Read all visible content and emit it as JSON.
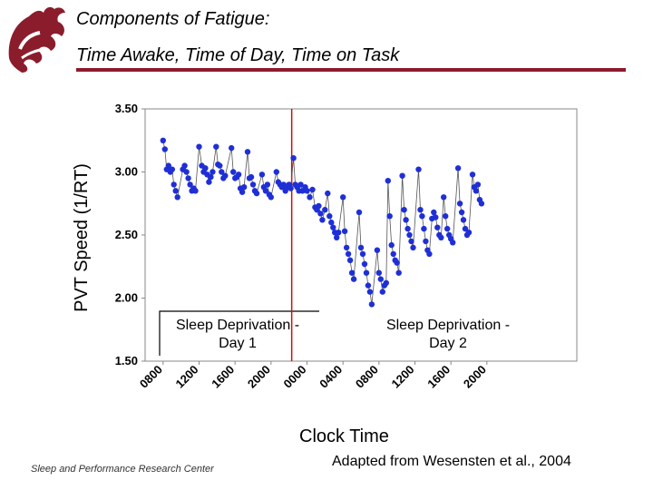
{
  "header": {
    "title_line1": "Components of Fatigue:",
    "title_line2": "Time Awake, Time of Day, Time on Task",
    "accent_color": "#8b1c2c",
    "logo_icon": "cougar-head-logo"
  },
  "chart_data": {
    "type": "scatter",
    "title": "",
    "xlabel": "Clock Time",
    "ylabel": "PVT Speed (1/RT)",
    "ylim": [
      1.5,
      3.5
    ],
    "yticks": [
      "1.50",
      "2.00",
      "2.50",
      "3.00",
      "3.50"
    ],
    "xlim_hours": [
      6,
      54
    ],
    "xticks": [
      "0800",
      "1200",
      "1600",
      "2000",
      "0000",
      "0400",
      "0800",
      "1200",
      "1600",
      "2000"
    ],
    "marker_color": "#1f2fd6",
    "connector_color": "#555555",
    "divider_color": "#cc1111",
    "divider_x_hours": 22.3,
    "annotations": [
      {
        "line1": "Sleep Deprivation -",
        "line2": "Day 1"
      },
      {
        "line1": "Sleep Deprivation -",
        "line2": "Day 2"
      }
    ],
    "series": [
      {
        "values": [
          [
            8.0,
            3.25
          ],
          [
            8.2,
            3.18
          ],
          [
            8.4,
            3.02
          ],
          [
            8.6,
            3.05
          ],
          [
            8.8,
            3.0
          ],
          [
            9.0,
            3.02
          ],
          [
            9.2,
            2.9
          ],
          [
            9.4,
            2.85
          ],
          [
            9.6,
            2.8
          ],
          [
            10.2,
            3.02
          ],
          [
            10.4,
            3.05
          ],
          [
            10.6,
            3.0
          ],
          [
            10.8,
            2.95
          ],
          [
            11.0,
            2.9
          ],
          [
            11.2,
            2.85
          ],
          [
            11.4,
            2.87
          ],
          [
            11.6,
            2.85
          ],
          [
            12.0,
            3.2
          ],
          [
            12.3,
            3.05
          ],
          [
            12.5,
            3.0
          ],
          [
            12.7,
            3.03
          ],
          [
            12.9,
            2.98
          ],
          [
            13.1,
            2.92
          ],
          [
            13.3,
            2.96
          ],
          [
            13.5,
            3.0
          ],
          [
            13.9,
            3.2
          ],
          [
            14.1,
            3.06
          ],
          [
            14.3,
            3.05
          ],
          [
            14.5,
            3.0
          ],
          [
            14.7,
            2.95
          ],
          [
            14.9,
            2.97
          ],
          [
            15.6,
            3.19
          ],
          [
            15.8,
            3.0
          ],
          [
            16.0,
            2.95
          ],
          [
            16.2,
            2.96
          ],
          [
            16.4,
            2.98
          ],
          [
            16.6,
            2.87
          ],
          [
            16.8,
            2.84
          ],
          [
            17.0,
            2.88
          ],
          [
            17.4,
            3.16
          ],
          [
            17.6,
            2.95
          ],
          [
            17.8,
            2.96
          ],
          [
            18.0,
            2.9
          ],
          [
            18.2,
            2.85
          ],
          [
            18.4,
            2.83
          ],
          [
            19.0,
            2.98
          ],
          [
            19.2,
            2.88
          ],
          [
            19.4,
            2.85
          ],
          [
            19.6,
            2.9
          ],
          [
            19.8,
            2.82
          ],
          [
            20.0,
            2.8
          ],
          [
            20.6,
            3.0
          ],
          [
            20.8,
            2.92
          ],
          [
            21.0,
            2.9
          ],
          [
            21.2,
            2.88
          ],
          [
            21.4,
            2.9
          ],
          [
            21.6,
            2.85
          ],
          [
            21.8,
            2.88
          ],
          [
            22.0,
            2.9
          ],
          [
            22.2,
            2.87
          ],
          [
            22.5,
            3.11
          ],
          [
            22.7,
            2.9
          ],
          [
            22.9,
            2.88
          ],
          [
            23.1,
            2.85
          ],
          [
            23.3,
            2.9
          ],
          [
            23.5,
            2.85
          ],
          [
            23.8,
            2.88
          ],
          [
            24.0,
            2.85
          ],
          [
            24.3,
            2.8
          ],
          [
            24.6,
            2.86
          ],
          [
            24.9,
            2.72
          ],
          [
            25.1,
            2.7
          ],
          [
            25.3,
            2.73
          ],
          [
            25.5,
            2.67
          ],
          [
            25.7,
            2.62
          ],
          [
            26.0,
            2.7
          ],
          [
            26.3,
            2.83
          ],
          [
            26.5,
            2.65
          ],
          [
            26.7,
            2.6
          ],
          [
            26.9,
            2.56
          ],
          [
            27.1,
            2.52
          ],
          [
            27.3,
            2.48
          ],
          [
            27.5,
            2.52
          ],
          [
            28.0,
            2.8
          ],
          [
            28.2,
            2.53
          ],
          [
            28.4,
            2.4
          ],
          [
            28.6,
            2.35
          ],
          [
            28.8,
            2.3
          ],
          [
            29.0,
            2.2
          ],
          [
            29.2,
            2.15
          ],
          [
            29.8,
            2.68
          ],
          [
            30.0,
            2.4
          ],
          [
            30.2,
            2.35
          ],
          [
            30.4,
            2.27
          ],
          [
            30.6,
            2.2
          ],
          [
            30.8,
            2.1
          ],
          [
            31.0,
            2.05
          ],
          [
            31.2,
            1.95
          ],
          [
            31.8,
            2.38
          ],
          [
            32.0,
            2.2
          ],
          [
            32.2,
            2.15
          ],
          [
            32.4,
            2.05
          ],
          [
            32.6,
            2.1
          ],
          [
            32.8,
            2.12
          ],
          [
            33.0,
            2.93
          ],
          [
            33.2,
            2.65
          ],
          [
            33.4,
            2.42
          ],
          [
            33.6,
            2.35
          ],
          [
            33.8,
            2.3
          ],
          [
            34.0,
            2.28
          ],
          [
            34.2,
            2.2
          ],
          [
            34.6,
            2.97
          ],
          [
            34.8,
            2.7
          ],
          [
            35.0,
            2.62
          ],
          [
            35.2,
            2.55
          ],
          [
            35.4,
            2.5
          ],
          [
            35.6,
            2.45
          ],
          [
            35.8,
            2.4
          ],
          [
            36.4,
            3.02
          ],
          [
            36.6,
            2.7
          ],
          [
            36.8,
            2.65
          ],
          [
            37.0,
            2.55
          ],
          [
            37.2,
            2.45
          ],
          [
            37.4,
            2.38
          ],
          [
            37.6,
            2.35
          ],
          [
            37.9,
            2.63
          ],
          [
            38.1,
            2.68
          ],
          [
            38.3,
            2.64
          ],
          [
            38.5,
            2.56
          ],
          [
            38.7,
            2.5
          ],
          [
            38.9,
            2.48
          ],
          [
            39.2,
            2.8
          ],
          [
            39.4,
            2.65
          ],
          [
            39.6,
            2.55
          ],
          [
            39.8,
            2.5
          ],
          [
            40.0,
            2.47
          ],
          [
            40.2,
            2.44
          ],
          [
            40.8,
            3.03
          ],
          [
            41.0,
            2.75
          ],
          [
            41.2,
            2.68
          ],
          [
            41.4,
            2.62
          ],
          [
            41.6,
            2.55
          ],
          [
            41.8,
            2.5
          ],
          [
            42.0,
            2.52
          ],
          [
            42.4,
            2.98
          ],
          [
            42.6,
            2.88
          ],
          [
            42.8,
            2.85
          ],
          [
            43.0,
            2.9
          ],
          [
            43.2,
            2.78
          ],
          [
            43.4,
            2.75
          ]
        ]
      }
    ]
  },
  "footer": {
    "left_text": "Sleep and Performance Research Center",
    "right_text": "Adapted from Wesensten et al., 2004"
  }
}
